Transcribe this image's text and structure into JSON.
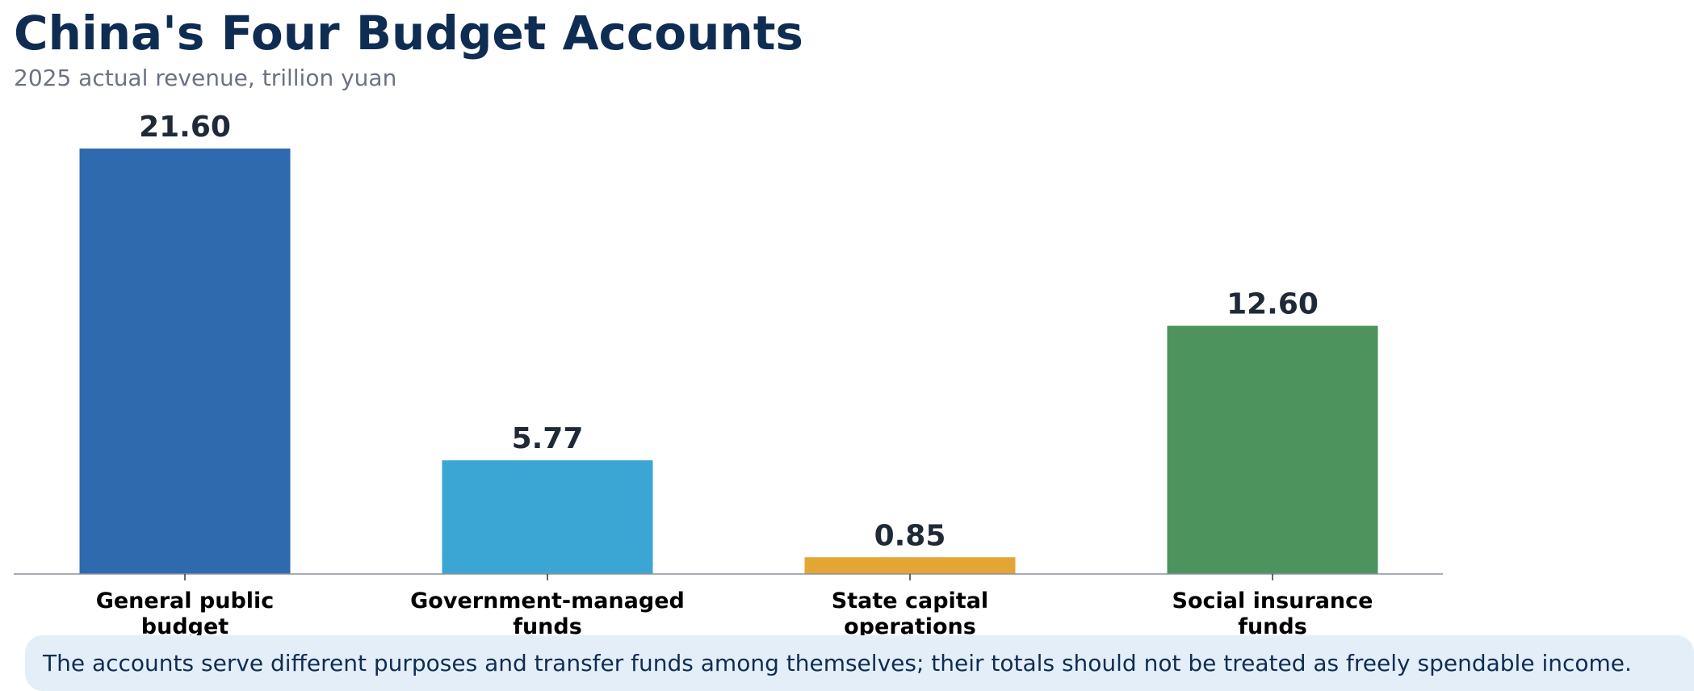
{
  "chart_data": {
    "type": "bar",
    "title": "China's Four Budget Accounts",
    "subtitle": "2025 actual revenue, trillion yuan",
    "xlabel": "",
    "ylabel": "",
    "categories": [
      [
        "General public",
        "budget"
      ],
      [
        "Government-managed",
        "funds"
      ],
      [
        "State capital",
        "operations"
      ],
      [
        "Social insurance",
        "funds"
      ]
    ],
    "values": [
      21.6,
      5.77,
      0.85,
      12.6
    ],
    "value_labels": [
      "21.60",
      "5.77",
      "0.85",
      "12.60"
    ],
    "colors": [
      "#2e6aad",
      "#3ba6d3",
      "#e3a636",
      "#4c935e"
    ],
    "ylim": [
      0,
      22
    ],
    "grid": false,
    "legend": "none"
  },
  "note": {
    "text": "The accounts serve different purposes and transfer funds among themselves; their totals should not be treated as freely spendable income."
  },
  "colors": {
    "title": "#0f2d52",
    "subtitle": "#6b7280",
    "value_label": "#1f2937",
    "axis": "#8a8f98",
    "note_background": "#e3eef9"
  }
}
